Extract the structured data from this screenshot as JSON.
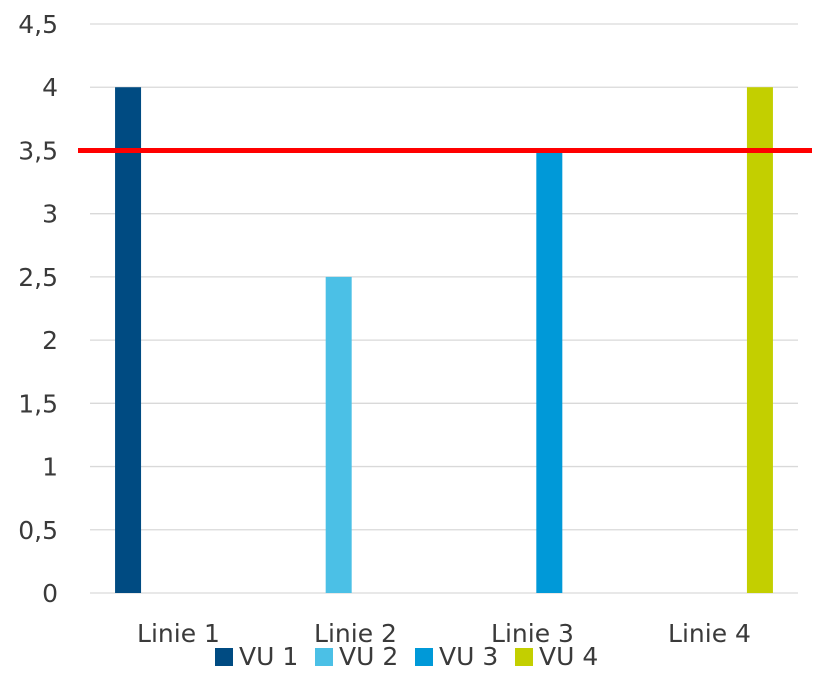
{
  "chart_data": {
    "type": "bar",
    "title": "",
    "xlabel": "",
    "ylabel": "",
    "ylim": [
      0,
      4.5
    ],
    "y_ticks": [
      "0",
      "0,5",
      "1",
      "1,5",
      "2",
      "2,5",
      "3",
      "3,5",
      "4",
      "4,5"
    ],
    "categories": [
      "Linie 1",
      "Linie 2",
      "Linie 3",
      "Linie 4"
    ],
    "series": [
      {
        "name": "VU 1",
        "color": "#004b82",
        "values": [
          4,
          null,
          null,
          null
        ]
      },
      {
        "name": "VU 2",
        "color": "#4bc0e6",
        "values": [
          null,
          2.5,
          null,
          null
        ]
      },
      {
        "name": "VU 3",
        "color": "#0099d8",
        "values": [
          null,
          null,
          3.5,
          null
        ]
      },
      {
        "name": "VU 4",
        "color": "#c3cf00",
        "values": [
          null,
          null,
          null,
          4
        ]
      }
    ],
    "reference_line": {
      "value": 3.5,
      "color": "#ff0000"
    },
    "grid": true,
    "legend_position": "bottom"
  }
}
